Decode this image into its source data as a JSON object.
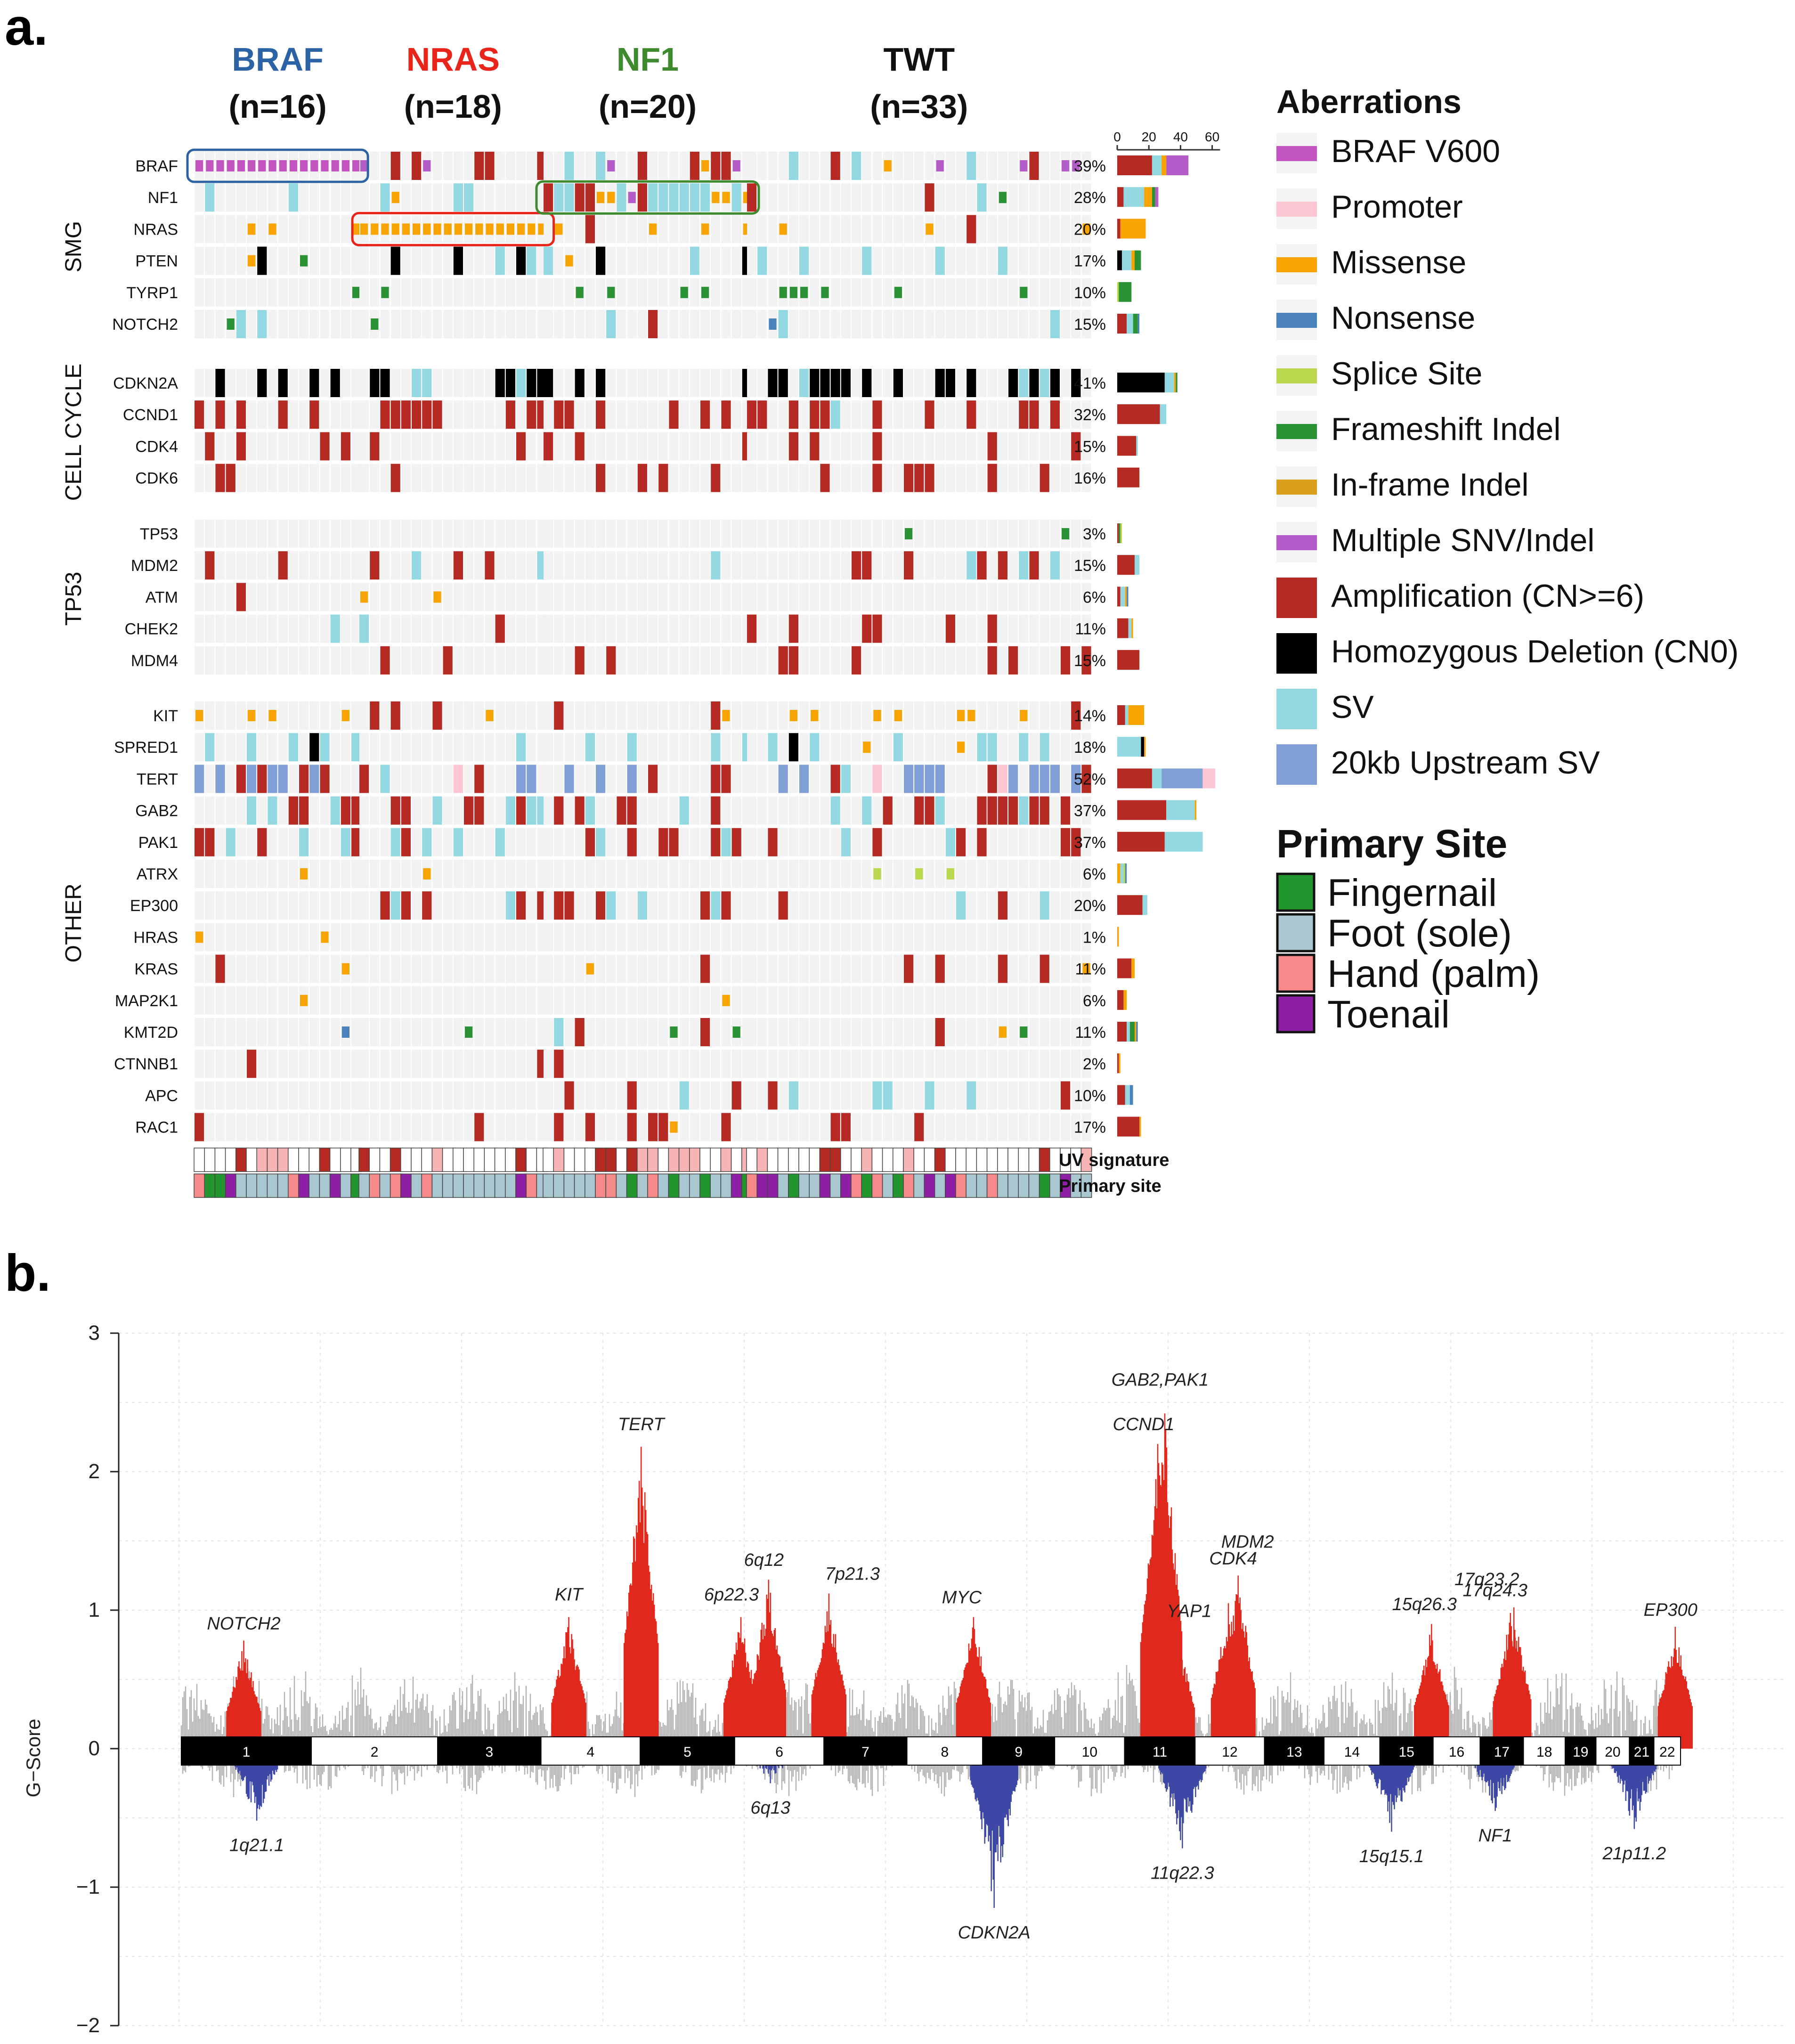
{
  "panel_labels": {
    "a": "a.",
    "b": "b."
  },
  "colors": {
    "cell_bg": "#f2f2f2",
    "BRAF V600": "#c355c0",
    "Promoter": "#fcc6d2",
    "Missense": "#f7a400",
    "Nonsense": "#4a82bc",
    "Splice Site": "#b9d84d",
    "Frameshift Indel": "#2a9134",
    "In-frame Indel": "#d9a11a",
    "Multiple SNV/Indel": "#b45cc7",
    "Amplification (CN>=6)": "#b52a22",
    "Homozygous Deletion (CN0)": "#000000",
    "SV": "#94d9e2",
    "20kb Upstream SV": "#7f9fd6",
    "Fingernail": "#23952f",
    "Foot (sole)": "#a9c7d1",
    "Hand (palm)": "#f68a8a",
    "Toenail": "#8e1ea3",
    "amp_peak": "#e0281c",
    "del_peak": "#3c47a6",
    "bg_peak": "#b3b3b3",
    "braf_title": "#2c63a4",
    "nras_title": "#e8241b",
    "nf1_title": "#3f8a2e",
    "twt_title": "#111111"
  },
  "chart_data": [
    {
      "type": "heatmap",
      "subtitle": "oncoprint",
      "groups": [
        {
          "name": "BRAF",
          "n_label": "(n=16)",
          "n": 16
        },
        {
          "name": "NRAS",
          "n_label": "(n=18)",
          "n": 18
        },
        {
          "name": "NF1",
          "n_label": "(n=20)",
          "n": 20
        },
        {
          "name": "TWT",
          "n_label": "(n=33)",
          "n": 33
        }
      ],
      "gene_sets": [
        {
          "name": "SMG",
          "genes": [
            {
              "gene": "BRAF",
              "pct": "39%",
              "bar": {
                "Amplification (CN>=6)": 22,
                "SV": 6,
                "Missense": 3,
                "Multiple SNV/Indel": 14
              }
            },
            {
              "gene": "NF1",
              "pct": "28%",
              "bar": {
                "Amplification (CN>=6)": 4,
                "SV": 13,
                "Missense": 5,
                "Frameshift Indel": 2,
                "Multiple SNV/Indel": 2
              }
            },
            {
              "gene": "NRAS",
              "pct": "20%",
              "bar": {
                "Amplification (CN>=6)": 2,
                "Missense": 16
              }
            },
            {
              "gene": "PTEN",
              "pct": "17%",
              "bar": {
                "Homozygous Deletion (CN0)": 3,
                "SV": 6,
                "Missense": 2,
                "Frameshift Indel": 4
              }
            },
            {
              "gene": "TYRP1",
              "pct": "10%",
              "bar": {
                "Splice Site": 1,
                "Frameshift Indel": 8
              }
            },
            {
              "gene": "NOTCH2",
              "pct": "15%",
              "bar": {
                "Amplification (CN>=6)": 6,
                "SV": 4,
                "Frameshift Indel": 3,
                "Nonsense": 1
              }
            }
          ]
        },
        {
          "name": "CELL CYCLE",
          "genes": [
            {
              "gene": "CDKN2A",
              "pct": "41%",
              "bar": {
                "Homozygous Deletion (CN0)": 30,
                "SV": 6,
                "Missense": 1,
                "Frameshift Indel": 1
              }
            },
            {
              "gene": "CCND1",
              "pct": "32%",
              "bar": {
                "Amplification (CN>=6)": 27,
                "SV": 4
              }
            },
            {
              "gene": "CDK4",
              "pct": "15%",
              "bar": {
                "Amplification (CN>=6)": 12,
                "SV": 1
              }
            },
            {
              "gene": "CDK6",
              "pct": "16%",
              "bar": {
                "Amplification (CN>=6)": 14
              }
            }
          ]
        },
        {
          "name": "TP53",
          "genes": [
            {
              "gene": "TP53",
              "pct": "3%",
              "bar": {
                "Amplification (CN>=6)": 1,
                "Frameshift Indel": 1,
                "Splice Site": 1
              }
            },
            {
              "gene": "MDM2",
              "pct": "15%",
              "bar": {
                "Amplification (CN>=6)": 11,
                "SV": 3
              }
            },
            {
              "gene": "ATM",
              "pct": "6%",
              "bar": {
                "Amplification (CN>=6)": 2,
                "SV": 3,
                "Missense": 1,
                "Nonsense": 1
              }
            },
            {
              "gene": "CHEK2",
              "pct": "11%",
              "bar": {
                "Amplification (CN>=6)": 7,
                "SV": 2,
                "Missense": 1
              }
            },
            {
              "gene": "MDM4",
              "pct": "15%",
              "bar": {
                "Amplification (CN>=6)": 14
              }
            }
          ]
        },
        {
          "name": "OTHER",
          "genes": [
            {
              "gene": "KIT",
              "pct": "14%",
              "bar": {
                "Amplification (CN>=6)": 5,
                "SV": 2,
                "Missense": 10
              }
            },
            {
              "gene": "SPRED1",
              "pct": "18%",
              "bar": {
                "SV": 15,
                "Homozygous Deletion (CN0)": 2,
                "Missense": 1
              }
            },
            {
              "gene": "TERT",
              "pct": "52%",
              "bar": {
                "Amplification (CN>=6)": 22,
                "SV": 6,
                "20kb Upstream SV": 26,
                "Promoter": 8
              }
            },
            {
              "gene": "GAB2",
              "pct": "37%",
              "bar": {
                "Amplification (CN>=6)": 31,
                "SV": 18,
                "Missense": 1
              }
            },
            {
              "gene": "PAK1",
              "pct": "37%",
              "bar": {
                "Amplification (CN>=6)": 30,
                "SV": 24
              }
            },
            {
              "gene": "ATRX",
              "pct": "6%",
              "bar": {
                "Missense": 2,
                "SV": 2,
                "Splice Site": 1,
                "Nonsense": 1
              }
            },
            {
              "gene": "EP300",
              "pct": "20%",
              "bar": {
                "Amplification (CN>=6)": 16,
                "SV": 3
              }
            },
            {
              "gene": "HRAS",
              "pct": "1%",
              "bar": {
                "Missense": 1
              }
            },
            {
              "gene": "KRAS",
              "pct": "11%",
              "bar": {
                "Amplification (CN>=6)": 9,
                "Missense": 2
              }
            },
            {
              "gene": "MAP2K1",
              "pct": "6%",
              "bar": {
                "Amplification (CN>=6)": 4,
                "Missense": 2
              }
            },
            {
              "gene": "KMT2D",
              "pct": "11%",
              "bar": {
                "Amplification (CN>=6)": 6,
                "SV": 2,
                "Frameshift Indel": 3,
                "Missense": 1,
                "Nonsense": 1
              }
            },
            {
              "gene": "CTNNB1",
              "pct": "2%",
              "bar": {
                "Amplification (CN>=6)": 1,
                "Missense": 1
              }
            },
            {
              "gene": "APC",
              "pct": "10%",
              "bar": {
                "Amplification (CN>=6)": 5,
                "SV": 3,
                "Nonsense": 2
              }
            },
            {
              "gene": "RAC1",
              "pct": "17%",
              "bar": {
                "Amplification (CN>=6)": 14,
                "Missense": 1
              }
            }
          ]
        }
      ],
      "frequency_axis": {
        "ticks": [
          "0",
          "20",
          "40",
          "60"
        ],
        "range": [
          0,
          65
        ]
      },
      "track_labels": [
        "UV signature",
        "Primary site"
      ],
      "aberrations_legend": {
        "title": "Aberrations",
        "items": [
          "BRAF V600",
          "Promoter",
          "Missense",
          "Nonsense",
          "Splice Site",
          "Frameshift Indel",
          "In-frame Indel",
          "Multiple SNV/Indel",
          "Amplification (CN>=6)",
          "Homozygous Deletion (CN0)",
          "SV",
          "20kb Upstream SV"
        ]
      },
      "primary_site_legend": {
        "title": "Primary Site",
        "items": [
          "Fingernail",
          "Foot (sole)",
          "Hand (palm)",
          "Toenail"
        ]
      }
    },
    {
      "type": "area",
      "subtitle": "GISTIC G-score by chromosome",
      "ylabel": "G−Score",
      "ylim": [
        -2,
        3
      ],
      "yticks": [
        3,
        2,
        1,
        0,
        -1,
        -2
      ],
      "ytick_labels": [
        "3",
        "2",
        "1",
        "0",
        "−1",
        "−2"
      ],
      "grid": true,
      "chromosomes": [
        "1",
        "2",
        "3",
        "4",
        "5",
        "6",
        "7",
        "8",
        "9",
        "10",
        "11",
        "12",
        "13",
        "14",
        "15",
        "16",
        "17",
        "18",
        "19",
        "20",
        "21",
        "22"
      ],
      "chromosome_sizes_mb": [
        249,
        242,
        198,
        190,
        181,
        171,
        159,
        145,
        138,
        134,
        135,
        133,
        114,
        107,
        102,
        90,
        83,
        80,
        59,
        64,
        47,
        51
      ],
      "amplification_peaks": [
        {
          "label": "NOTCH2",
          "chrom": 1,
          "pos": 0.48,
          "g": 0.78
        },
        {
          "label": "KIT",
          "chrom": 4,
          "pos": 0.28,
          "g": 0.95
        },
        {
          "label": "TERT",
          "chrom": 5,
          "pos": 0.01,
          "g": 2.18
        },
        {
          "label": "6p22.3",
          "chrom": 6,
          "pos": 0.07,
          "g": 0.95
        },
        {
          "label": "6q12",
          "chrom": 6,
          "pos": 0.38,
          "g": 1.22
        },
        {
          "label": "7p21.3",
          "chrom": 7,
          "pos": 0.06,
          "g": 1.12
        },
        {
          "label": "MYC",
          "chrom": 8,
          "pos": 0.88,
          "g": 0.95
        },
        {
          "label": "GAB2,PAK1",
          "chrom": 11,
          "pos": 0.57,
          "g": 2.42
        },
        {
          "label": "CCND1",
          "chrom": 11,
          "pos": 0.47,
          "g": 2.2
        },
        {
          "label": "YAP1",
          "chrom": 11,
          "pos": 0.75,
          "g": 0.85
        },
        {
          "label": "MDM2",
          "chrom": 12,
          "pos": 0.62,
          "g": 1.25
        },
        {
          "label": "CDK4",
          "chrom": 12,
          "pos": 0.48,
          "g": 1.05
        },
        {
          "label": "15q26.3",
          "chrom": 15,
          "pos": 0.97,
          "g": 0.9
        },
        {
          "label": "17q23.2",
          "chrom": 17,
          "pos": 0.7,
          "g": 0.98
        },
        {
          "label": "17q24.3",
          "chrom": 17,
          "pos": 0.78,
          "g": 1.02
        },
        {
          "label": "EP300",
          "chrom": 22,
          "pos": 0.8,
          "g": 0.88
        }
      ],
      "deletion_peaks": [
        {
          "label": "1q21.1",
          "chrom": 1,
          "pos": 0.58,
          "g": -0.52
        },
        {
          "label": "6q13",
          "chrom": 6,
          "pos": 0.4,
          "g": -0.25
        },
        {
          "label": "CDKN2A",
          "chrom": 9,
          "pos": 0.16,
          "g": -1.15
        },
        {
          "label": "11q22.3",
          "chrom": 11,
          "pos": 0.82,
          "g": -0.72
        },
        {
          "label": "15q15.1",
          "chrom": 15,
          "pos": 0.22,
          "g": -0.6
        },
        {
          "label": "NF1",
          "chrom": 17,
          "pos": 0.35,
          "g": -0.45
        },
        {
          "label": "21p11.2",
          "chrom": 21,
          "pos": 0.2,
          "g": -0.58
        }
      ]
    }
  ]
}
